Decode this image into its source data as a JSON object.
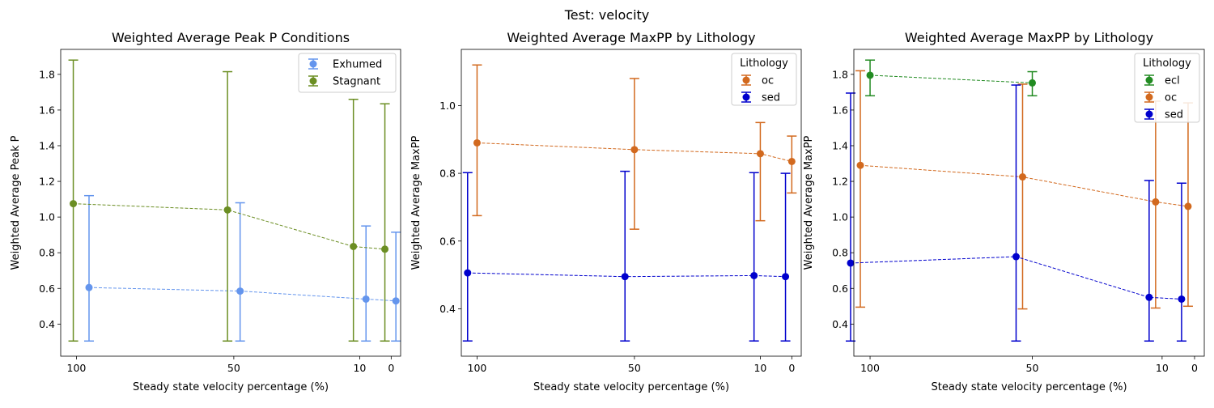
{
  "suptitle": "Test: velocity",
  "chart_data": [
    {
      "type": "line",
      "title": "Weighted Average Peak P Conditions",
      "xlabel": "Steady state velocity percentage (%)",
      "ylabel": "Weighted Average Peak P",
      "x_ticks": [
        100,
        50,
        10,
        0
      ],
      "y_ticks": [
        0.4,
        0.6,
        0.8,
        1.0,
        1.2,
        1.4,
        1.6,
        1.8
      ],
      "xlim": [
        105,
        -3
      ],
      "ylim": [
        0.22,
        1.94
      ],
      "legend_position": "top-right",
      "error_bars": true,
      "series": [
        {
          "name": "Exhumed",
          "color": "#6495ed",
          "x": [
            96,
            48,
            8,
            -1.5
          ],
          "y": [
            0.605,
            0.585,
            0.54,
            0.53
          ],
          "err_low": [
            0.305,
            0.305,
            0.305,
            0.305
          ],
          "err_high": [
            1.12,
            1.08,
            0.95,
            0.915
          ]
        },
        {
          "name": "Stagnant",
          "color": "#6b8e23",
          "x": [
            101,
            52,
            12,
            2
          ],
          "y": [
            1.075,
            1.04,
            0.835,
            0.82
          ],
          "err_low": [
            0.305,
            0.305,
            0.305,
            0.305
          ],
          "err_high": [
            1.88,
            1.815,
            1.66,
            1.635
          ]
        }
      ]
    },
    {
      "type": "line",
      "title": "Weighted Average MaxPP by Lithology",
      "xlabel": "Steady state velocity percentage (%)",
      "ylabel": "Weighted Average MaxPP",
      "x_ticks": [
        100,
        50,
        10,
        0
      ],
      "y_ticks": [
        0.4,
        0.6,
        0.8,
        1.0
      ],
      "xlim": [
        105,
        -3
      ],
      "ylim": [
        0.26,
        1.166
      ],
      "legend_title": "Lithology",
      "legend_position": "top-right",
      "error_bars": true,
      "series": [
        {
          "name": "oc",
          "color": "#d2691e",
          "x": [
            100,
            50,
            10,
            0
          ],
          "y": [
            0.89,
            0.87,
            0.858,
            0.835
          ],
          "err_low": [
            0.675,
            0.635,
            0.66,
            0.742
          ],
          "err_high": [
            1.12,
            1.08,
            0.95,
            0.91
          ]
        },
        {
          "name": "sed",
          "color": "#0000cd",
          "x": [
            103,
            53,
            12,
            2
          ],
          "y": [
            0.506,
            0.495,
            0.498,
            0.495
          ],
          "err_low": [
            0.305,
            0.305,
            0.305,
            0.305
          ],
          "err_high": [
            0.802,
            0.806,
            0.802,
            0.8
          ]
        }
      ]
    },
    {
      "type": "line",
      "title": "Weighted Average MaxPP by Lithology",
      "xlabel": "Steady state velocity percentage (%)",
      "ylabel": "Weighted Average MaxPP",
      "x_ticks": [
        100,
        50,
        10,
        0
      ],
      "y_ticks": [
        0.4,
        0.6,
        0.8,
        1.0,
        1.2,
        1.4,
        1.6,
        1.8
      ],
      "xlim": [
        105,
        -3
      ],
      "ylim": [
        0.22,
        1.94
      ],
      "legend_title": "Lithology",
      "legend_position": "top-right",
      "error_bars": true,
      "series": [
        {
          "name": "ecl",
          "color": "#228b22",
          "x": [
            100,
            50
          ],
          "y": [
            1.795,
            1.752
          ],
          "err_low": [
            1.68,
            1.68
          ],
          "err_high": [
            1.88,
            1.815
          ]
        },
        {
          "name": "oc",
          "color": "#d2691e",
          "x": [
            103,
            53,
            12,
            2
          ],
          "y": [
            1.29,
            1.225,
            1.085,
            1.06
          ],
          "err_low": [
            0.495,
            0.485,
            0.49,
            0.5
          ],
          "err_high": [
            1.82,
            1.745,
            1.65,
            1.64
          ]
        },
        {
          "name": "sed",
          "color": "#0000cd",
          "x": [
            106,
            55,
            14,
            4
          ],
          "y": [
            0.742,
            0.778,
            0.55,
            0.54
          ],
          "err_low": [
            0.305,
            0.305,
            0.305,
            0.305
          ],
          "err_high": [
            1.695,
            1.74,
            1.205,
            1.19
          ]
        }
      ]
    }
  ]
}
